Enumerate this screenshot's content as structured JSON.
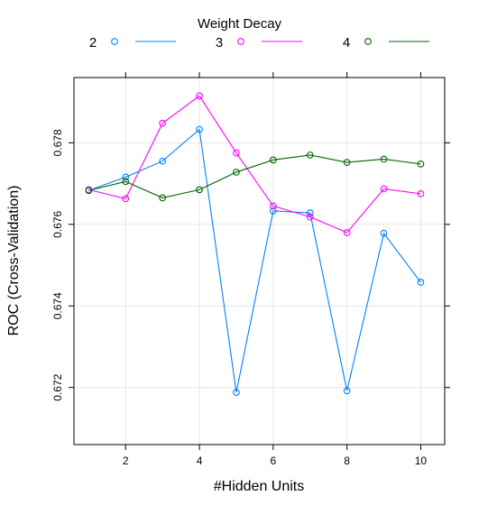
{
  "chart_data": {
    "type": "line",
    "xlabel": "#Hidden Units",
    "ylabel": "ROC (Cross-Validation)",
    "legend_title": "Weight Decay",
    "legend_position": "top",
    "grid": true,
    "xlim": [
      0.6,
      10.65
    ],
    "ylim": [
      0.6706,
      0.6796
    ],
    "xticks": [
      2,
      4,
      6,
      8,
      10
    ],
    "yticks": [
      0.672,
      0.674,
      0.676,
      0.678
    ],
    "ytick_labels": [
      "0.672",
      "0.674",
      "0.676",
      "0.678"
    ],
    "x": [
      1,
      2,
      3,
      4,
      5,
      6,
      7,
      8,
      9,
      10
    ],
    "series": [
      {
        "name": "2",
        "color": "#0080ff",
        "values": [
          0.67683,
          0.67716,
          0.67755,
          0.67833,
          0.67188,
          0.67633,
          0.67628,
          0.67192,
          0.67578,
          0.67458
        ]
      },
      {
        "name": "3",
        "color": "#ff00ff",
        "values": [
          0.67685,
          0.67663,
          0.67848,
          0.67915,
          0.67775,
          0.67645,
          0.67618,
          0.6758,
          0.67687,
          0.67675
        ]
      },
      {
        "name": "4",
        "color": "#006400",
        "values": [
          0.67683,
          0.67705,
          0.67665,
          0.67685,
          0.67728,
          0.67758,
          0.6777,
          0.67752,
          0.6776,
          0.67748
        ]
      }
    ]
  }
}
